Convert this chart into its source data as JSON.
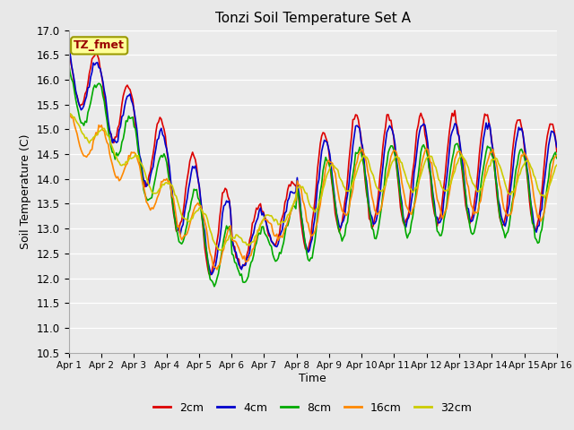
{
  "title": "Tonzi Soil Temperature Set A",
  "xlabel": "Time",
  "ylabel": "Soil Temperature (C)",
  "ylim": [
    10.5,
    17.0
  ],
  "yticks": [
    10.5,
    11.0,
    11.5,
    12.0,
    12.5,
    13.0,
    13.5,
    14.0,
    14.5,
    15.0,
    15.5,
    16.0,
    16.5,
    17.0
  ],
  "xtick_labels": [
    "Apr 1",
    "Apr 2",
    "Apr 3",
    "Apr 4",
    "Apr 5",
    "Apr 6",
    "Apr 7",
    "Apr 8",
    "Apr 9",
    "Apr 10",
    "Apr 11",
    "Apr 12",
    "Apr 13",
    "Apr 14",
    "Apr 15",
    "Apr 16"
  ],
  "series_colors": [
    "#dd0000",
    "#0000cc",
    "#00aa00",
    "#ff8800",
    "#cccc00"
  ],
  "series_labels": [
    "2cm",
    "4cm",
    "8cm",
    "16cm",
    "32cm"
  ],
  "fig_facecolor": "#e8e8e8",
  "plot_bg_color": "#ebebeb",
  "grid_color": "#ffffff",
  "legend_box_facecolor": "#ffff99",
  "legend_box_edgecolor": "#999900",
  "annotation_text": "TZ_fmet",
  "annotation_color": "#990000",
  "n_points": 360
}
